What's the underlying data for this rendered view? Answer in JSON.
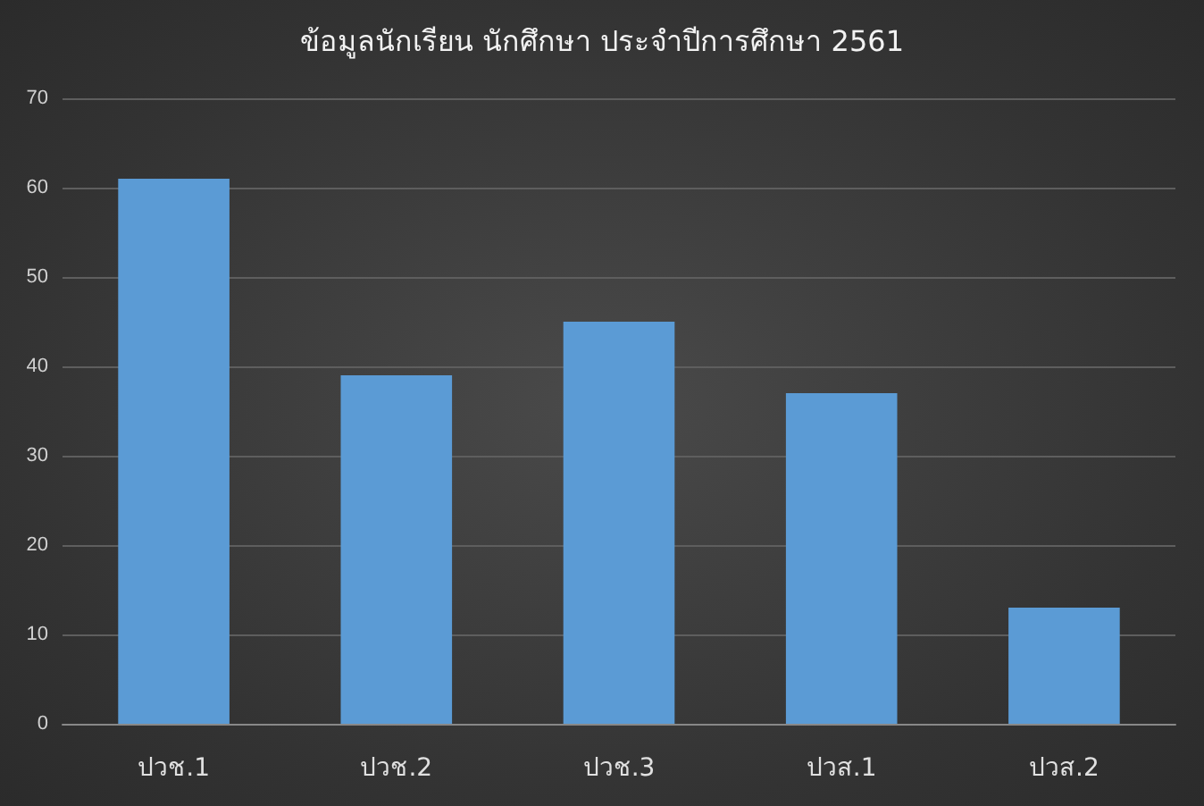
{
  "chart_data": {
    "type": "bar",
    "title": "ข้อมูลนักเรียน นักศึกษา ประจำปีการศึกษา 2561",
    "categories": [
      "ปวช.1",
      "ปวช.2",
      "ปวช.3",
      "ปวส.1",
      "ปวส.2"
    ],
    "values": [
      61,
      39,
      45,
      37,
      13
    ],
    "color": "#5b9bd5",
    "ylim": [
      0,
      70
    ],
    "yticks": [
      0,
      10,
      20,
      30,
      40,
      50,
      60,
      70
    ],
    "grid": "y"
  }
}
